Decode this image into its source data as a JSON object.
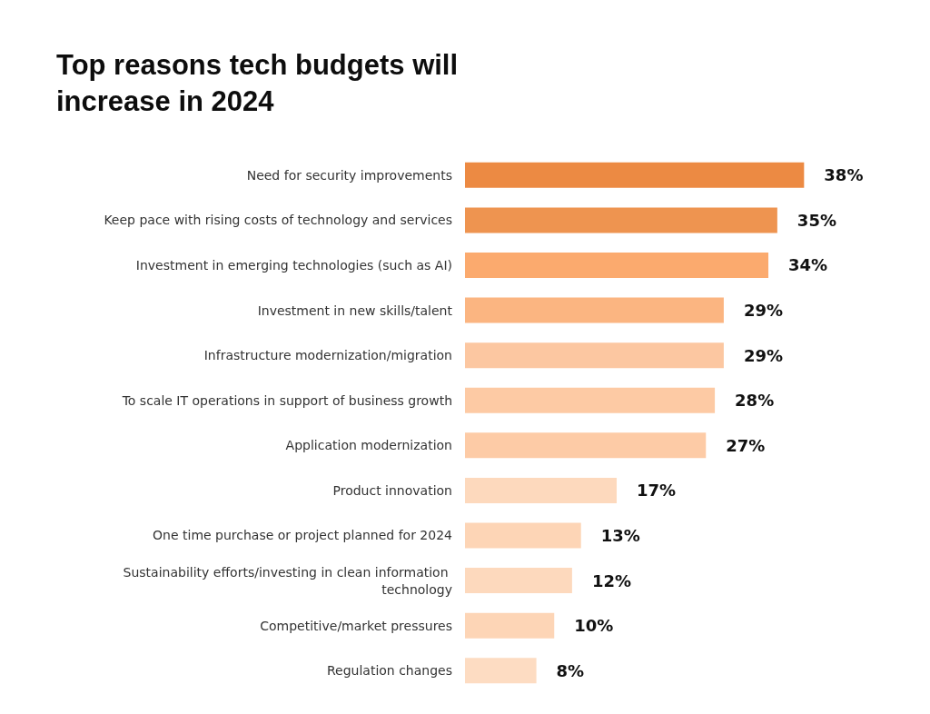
{
  "chart_data": {
    "type": "bar",
    "orientation": "horizontal",
    "title": "Top reasons tech budgets will increase in 2024",
    "categories": [
      "Need for security improvements",
      "Keep pace with rising costs of technology and services",
      "Investment in emerging technologies (such as AI)",
      "Investment in new skills/talent",
      "Infrastructure modernization/migration",
      "To scale IT operations in support of business growth",
      "Application modernization",
      "Product innovation",
      "One time purchase or project planned for 2024",
      "Sustainability efforts/investing in clean information technology",
      "Competitive/market pressures",
      "Regulation changes"
    ],
    "values": [
      38,
      35,
      34,
      29,
      29,
      28,
      27,
      17,
      13,
      12,
      10,
      8
    ],
    "colors": [
      "#ec8a43",
      "#ee9450",
      "#fbaa6e",
      "#fbb581",
      "#fcc7a1",
      "#fdcaa4",
      "#fdcba6",
      "#fdd9bd",
      "#fdd5b6",
      "#fdd9bd",
      "#fdd5b6",
      "#fddcc2"
    ],
    "value_labels": [
      "38%",
      "35%",
      "34%",
      "29%",
      "29%",
      "28%",
      "27%",
      "17%",
      "13%",
      "12%",
      "10%",
      "8%"
    ],
    "tick_labels": "y"
  }
}
